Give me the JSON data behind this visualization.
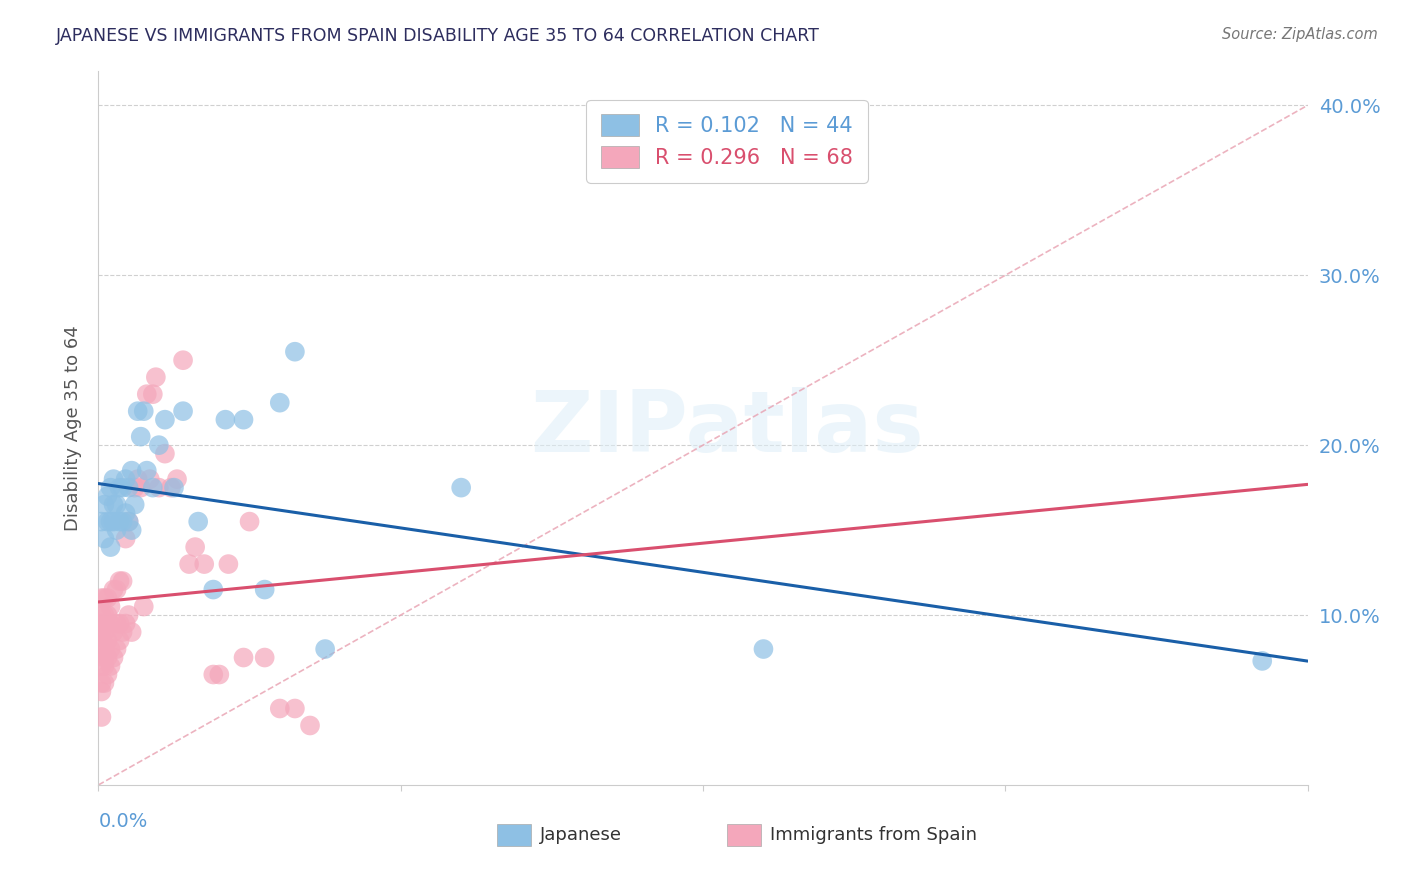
{
  "title": "JAPANESE VS IMMIGRANTS FROM SPAIN DISABILITY AGE 35 TO 64 CORRELATION CHART",
  "source": "Source: ZipAtlas.com",
  "ylabel": "Disability Age 35 to 64",
  "legend_japanese": "Japanese",
  "legend_spain": "Immigrants from Spain",
  "R_japanese": 0.102,
  "N_japanese": 44,
  "R_spain": 0.296,
  "N_spain": 68,
  "xlim": [
    0.0,
    0.4
  ],
  "ylim": [
    0.0,
    0.42
  ],
  "title_color": "#2d2d5e",
  "axis_color": "#5b9bd5",
  "watermark_text": "ZIPatlas",
  "blue_color": "#8ec0e4",
  "pink_color": "#f4a7bb",
  "blue_line_color": "#1a5fa8",
  "pink_line_color": "#d94f6e",
  "grid_color": "#d0d0d0",
  "japanese_points_x": [
    0.001,
    0.002,
    0.002,
    0.003,
    0.003,
    0.004,
    0.004,
    0.004,
    0.005,
    0.005,
    0.005,
    0.006,
    0.006,
    0.007,
    0.007,
    0.008,
    0.008,
    0.009,
    0.009,
    0.01,
    0.01,
    0.011,
    0.011,
    0.012,
    0.013,
    0.014,
    0.015,
    0.016,
    0.018,
    0.02,
    0.022,
    0.025,
    0.028,
    0.033,
    0.038,
    0.042,
    0.048,
    0.055,
    0.06,
    0.065,
    0.075,
    0.12,
    0.22,
    0.385
  ],
  "japanese_points_y": [
    0.155,
    0.145,
    0.165,
    0.155,
    0.17,
    0.14,
    0.155,
    0.175,
    0.155,
    0.165,
    0.18,
    0.15,
    0.165,
    0.155,
    0.175,
    0.155,
    0.175,
    0.16,
    0.18,
    0.155,
    0.175,
    0.15,
    0.185,
    0.165,
    0.22,
    0.205,
    0.22,
    0.185,
    0.175,
    0.2,
    0.215,
    0.175,
    0.22,
    0.155,
    0.115,
    0.215,
    0.215,
    0.115,
    0.225,
    0.255,
    0.08,
    0.175,
    0.08,
    0.073
  ],
  "spain_points_x": [
    0.001,
    0.001,
    0.001,
    0.001,
    0.001,
    0.001,
    0.001,
    0.001,
    0.001,
    0.001,
    0.002,
    0.002,
    0.002,
    0.002,
    0.002,
    0.002,
    0.002,
    0.002,
    0.003,
    0.003,
    0.003,
    0.003,
    0.003,
    0.004,
    0.004,
    0.004,
    0.004,
    0.005,
    0.005,
    0.005,
    0.006,
    0.006,
    0.006,
    0.007,
    0.007,
    0.007,
    0.008,
    0.008,
    0.009,
    0.009,
    0.01,
    0.01,
    0.011,
    0.012,
    0.013,
    0.014,
    0.015,
    0.016,
    0.017,
    0.018,
    0.019,
    0.02,
    0.022,
    0.024,
    0.026,
    0.028,
    0.03,
    0.032,
    0.035,
    0.038,
    0.04,
    0.043,
    0.048,
    0.05,
    0.055,
    0.06,
    0.065,
    0.07
  ],
  "spain_points_y": [
    0.04,
    0.055,
    0.06,
    0.07,
    0.08,
    0.085,
    0.09,
    0.095,
    0.1,
    0.11,
    0.06,
    0.07,
    0.075,
    0.08,
    0.09,
    0.095,
    0.1,
    0.11,
    0.065,
    0.075,
    0.085,
    0.1,
    0.11,
    0.07,
    0.08,
    0.095,
    0.105,
    0.075,
    0.09,
    0.115,
    0.08,
    0.095,
    0.115,
    0.085,
    0.095,
    0.12,
    0.09,
    0.12,
    0.095,
    0.145,
    0.1,
    0.155,
    0.09,
    0.175,
    0.18,
    0.175,
    0.105,
    0.23,
    0.18,
    0.23,
    0.24,
    0.175,
    0.195,
    0.175,
    0.18,
    0.25,
    0.13,
    0.14,
    0.13,
    0.065,
    0.065,
    0.13,
    0.075,
    0.155,
    0.075,
    0.045,
    0.045,
    0.035
  ]
}
